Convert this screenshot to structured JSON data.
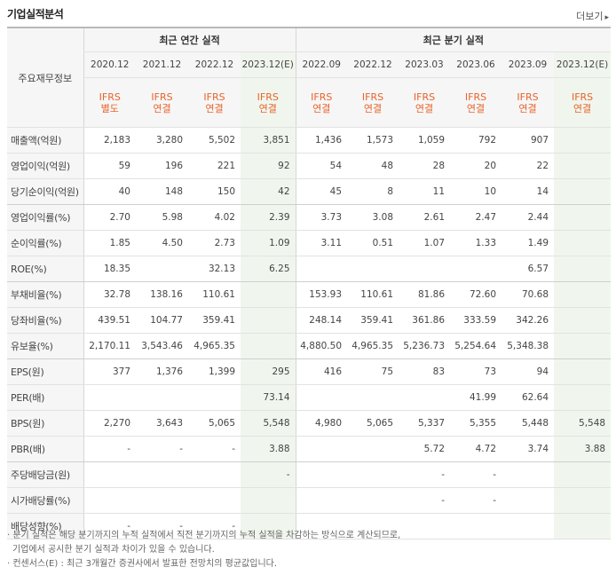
{
  "header": {
    "title": "기업실적분석",
    "more_label": "더보기"
  },
  "table": {
    "corner_label": "주요재무정보",
    "annual_group": "최근 연간 실적",
    "quarter_group": "최근 분기 실적",
    "annual_periods": [
      "2020.12",
      "2021.12",
      "2022.12",
      "2023.12(E)"
    ],
    "quarter_periods": [
      "2022.09",
      "2022.12",
      "2023.03",
      "2023.06",
      "2023.09",
      "2023.12(E)"
    ],
    "annual_accounts": [
      [
        "IFRS",
        "별도"
      ],
      [
        "IFRS",
        "연결"
      ],
      [
        "IFRS",
        "연결"
      ],
      [
        "IFRS",
        "연결"
      ]
    ],
    "quarter_accounts": [
      [
        "IFRS",
        "연결"
      ],
      [
        "IFRS",
        "연결"
      ],
      [
        "IFRS",
        "연결"
      ],
      [
        "IFRS",
        "연결"
      ],
      [
        "IFRS",
        "연결"
      ],
      [
        "IFRS",
        "연결"
      ]
    ],
    "rows": [
      {
        "label": "매출액(억원)",
        "values": [
          "2,183",
          "3,280",
          "5,502",
          "3,851",
          "1,436",
          "1,573",
          "1,059",
          "792",
          "907",
          ""
        ]
      },
      {
        "label": "영업이익(억원)",
        "values": [
          "59",
          "196",
          "221",
          "92",
          "54",
          "48",
          "28",
          "20",
          "22",
          ""
        ]
      },
      {
        "label": "당기순이익(억원)",
        "values": [
          "40",
          "148",
          "150",
          "42",
          "45",
          "8",
          "11",
          "10",
          "14",
          ""
        ]
      },
      {
        "label": "영업이익률(%)",
        "values": [
          "2.70",
          "5.98",
          "4.02",
          "2.39",
          "3.73",
          "3.08",
          "2.61",
          "2.47",
          "2.44",
          ""
        ]
      },
      {
        "label": "순이익률(%)",
        "values": [
          "1.85",
          "4.50",
          "2.73",
          "1.09",
          "3.11",
          "0.51",
          "1.07",
          "1.33",
          "1.49",
          ""
        ]
      },
      {
        "label": "ROE(%)",
        "values": [
          "18.35",
          "",
          "32.13",
          "6.25",
          "",
          "",
          "",
          "",
          "6.57",
          ""
        ]
      },
      {
        "label": "부채비율(%)",
        "values": [
          "32.78",
          "138.16",
          "110.61",
          "",
          "153.93",
          "110.61",
          "81.86",
          "72.60",
          "70.68",
          ""
        ]
      },
      {
        "label": "당좌비율(%)",
        "values": [
          "439.51",
          "104.77",
          "359.41",
          "",
          "248.14",
          "359.41",
          "361.86",
          "333.59",
          "342.26",
          ""
        ]
      },
      {
        "label": "유보율(%)",
        "values": [
          "2,170.11",
          "3,543.46",
          "4,965.35",
          "",
          "4,880.50",
          "4,965.35",
          "5,236.73",
          "5,254.64",
          "5,348.38",
          ""
        ]
      },
      {
        "label": "EPS(원)",
        "values": [
          "377",
          "1,376",
          "1,399",
          "295",
          "416",
          "75",
          "83",
          "73",
          "94",
          ""
        ]
      },
      {
        "label": "PER(배)",
        "values": [
          "",
          "",
          "",
          "73.14",
          "",
          "",
          "",
          "41.99",
          "62.64",
          ""
        ]
      },
      {
        "label": "BPS(원)",
        "values": [
          "2,270",
          "3,643",
          "5,065",
          "5,548",
          "4,980",
          "5,065",
          "5,337",
          "5,355",
          "5,448",
          "5,548"
        ]
      },
      {
        "label": "PBR(배)",
        "values": [
          "-",
          "-",
          "-",
          "3.88",
          "",
          "",
          "5.72",
          "4.72",
          "3.74",
          "3.88"
        ]
      },
      {
        "label": "주당배당금(원)",
        "values": [
          "",
          "",
          "",
          "-",
          "",
          "",
          "-",
          "-",
          "",
          ""
        ]
      },
      {
        "label": "시가배당률(%)",
        "values": [
          "",
          "",
          "",
          "",
          "",
          "",
          "-",
          "-",
          "",
          ""
        ]
      },
      {
        "label": "배당성향(%)",
        "values": [
          "-",
          "-",
          "-",
          "",
          "",
          "",
          "",
          "",
          "",
          ""
        ]
      }
    ]
  },
  "notes": [
    "· 분기 실적은 해당 분기까지의 누적 실적에서 직전 분기까지의 누적 실적을 차감하는 방식으로 계산되므로,",
    "  기업에서 공시한 분기 실적과 차이가 있을 수 있습니다.",
    "· 컨센서스(E) : 최근 3개월간 증권사에서 발표한 전망치의 평균값입니다."
  ]
}
